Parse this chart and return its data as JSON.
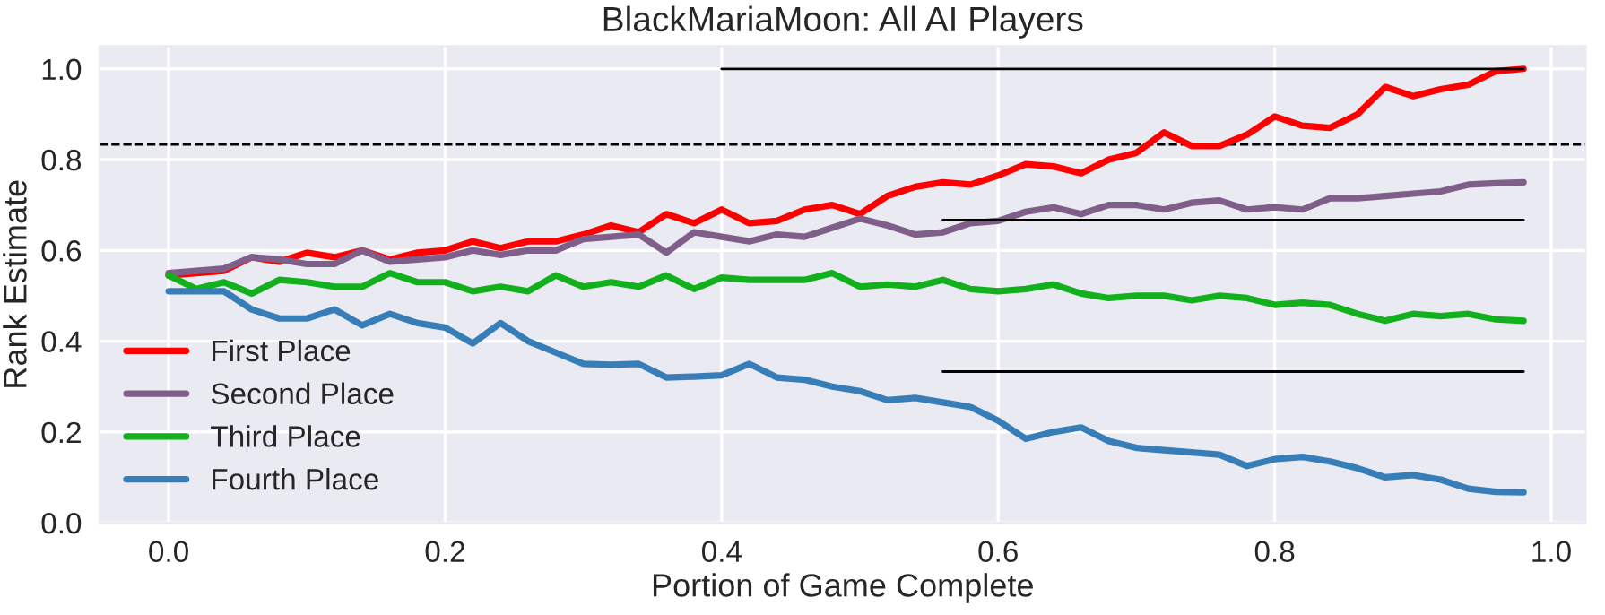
{
  "chart_data": {
    "type": "line",
    "title": "BlackMariaMoon: All AI Players",
    "xlabel": "Portion of Game Complete",
    "ylabel": "Rank Estimate",
    "x": [
      0.0,
      0.02,
      0.04,
      0.06,
      0.08,
      0.1,
      0.12,
      0.14,
      0.16,
      0.18,
      0.2,
      0.22,
      0.24,
      0.26,
      0.28,
      0.3,
      0.32,
      0.34,
      0.36,
      0.38,
      0.4,
      0.42,
      0.44,
      0.46,
      0.48,
      0.5,
      0.52,
      0.54,
      0.56,
      0.58,
      0.6,
      0.62,
      0.64,
      0.66,
      0.68,
      0.7,
      0.72,
      0.74,
      0.76,
      0.78,
      0.8,
      0.82,
      0.84,
      0.86,
      0.88,
      0.9,
      0.92,
      0.94,
      0.96,
      0.98
    ],
    "series": [
      {
        "name": "First Place",
        "color": "#ff0000",
        "values": [
          0.545,
          0.55,
          0.555,
          0.585,
          0.575,
          0.595,
          0.585,
          0.6,
          0.58,
          0.595,
          0.6,
          0.62,
          0.605,
          0.62,
          0.62,
          0.635,
          0.655,
          0.64,
          0.68,
          0.66,
          0.69,
          0.66,
          0.665,
          0.69,
          0.7,
          0.68,
          0.72,
          0.74,
          0.75,
          0.745,
          0.765,
          0.79,
          0.785,
          0.77,
          0.8,
          0.815,
          0.86,
          0.83,
          0.83,
          0.855,
          0.895,
          0.875,
          0.87,
          0.9,
          0.96,
          0.94,
          0.955,
          0.965,
          0.995,
          1.0
        ]
      },
      {
        "name": "Second Place",
        "color": "#7f5f8a",
        "values": [
          0.55,
          0.555,
          0.56,
          0.585,
          0.58,
          0.57,
          0.57,
          0.6,
          0.575,
          0.58,
          0.585,
          0.6,
          0.59,
          0.6,
          0.6,
          0.625,
          0.63,
          0.635,
          0.595,
          0.64,
          0.63,
          0.62,
          0.635,
          0.63,
          0.65,
          0.67,
          0.655,
          0.635,
          0.64,
          0.66,
          0.665,
          0.685,
          0.695,
          0.68,
          0.7,
          0.7,
          0.69,
          0.705,
          0.71,
          0.69,
          0.695,
          0.69,
          0.715,
          0.715,
          0.72,
          0.725,
          0.73,
          0.745,
          0.748,
          0.75
        ]
      },
      {
        "name": "Third Place",
        "color": "#12b01c",
        "values": [
          0.545,
          0.515,
          0.53,
          0.505,
          0.535,
          0.53,
          0.52,
          0.52,
          0.55,
          0.53,
          0.53,
          0.51,
          0.52,
          0.51,
          0.545,
          0.52,
          0.53,
          0.52,
          0.545,
          0.515,
          0.54,
          0.535,
          0.535,
          0.535,
          0.55,
          0.52,
          0.525,
          0.52,
          0.535,
          0.515,
          0.51,
          0.515,
          0.525,
          0.505,
          0.495,
          0.5,
          0.5,
          0.49,
          0.5,
          0.495,
          0.48,
          0.485,
          0.48,
          0.46,
          0.445,
          0.46,
          0.455,
          0.46,
          0.448,
          0.445
        ]
      },
      {
        "name": "Fourth Place",
        "color": "#377eb8",
        "values": [
          0.51,
          0.51,
          0.51,
          0.47,
          0.45,
          0.45,
          0.47,
          0.435,
          0.46,
          0.44,
          0.43,
          0.395,
          0.44,
          0.4,
          0.375,
          0.35,
          0.348,
          0.35,
          0.32,
          0.322,
          0.325,
          0.35,
          0.32,
          0.315,
          0.3,
          0.29,
          0.27,
          0.275,
          0.265,
          0.255,
          0.225,
          0.185,
          0.2,
          0.21,
          0.18,
          0.165,
          0.16,
          0.155,
          0.15,
          0.125,
          0.14,
          0.145,
          0.135,
          0.12,
          0.1,
          0.105,
          0.095,
          0.075,
          0.068,
          0.067
        ]
      },
      {
        "color": "#000000",
        "x": [
          0.4,
          0.98
        ],
        "values": [
          1.0,
          1.0
        ]
      },
      {
        "color": "#000000",
        "x": [
          0.56,
          0.98
        ],
        "values": [
          0.667,
          0.667
        ]
      },
      {
        "color": "#000000",
        "x": [
          0.56,
          0.98
        ],
        "values": [
          0.333,
          0.333
        ]
      }
    ],
    "ref_lines": [
      {
        "axis": "y",
        "value": 0.833,
        "color": "#000000",
        "line_style": "dashed"
      }
    ],
    "xlim": [
      -0.05,
      1.025
    ],
    "ylim": [
      0,
      1.05
    ],
    "xticks": [
      {
        "value": 0.0,
        "label": "0.0"
      },
      {
        "value": 0.2,
        "label": "0.2"
      },
      {
        "value": 0.4,
        "label": "0.4"
      },
      {
        "value": 0.6,
        "label": "0.6"
      },
      {
        "value": 0.8,
        "label": "0.8"
      },
      {
        "value": 1.0,
        "label": "1.0"
      }
    ],
    "yticks": [
      {
        "value": 0.0,
        "label": "0.0"
      },
      {
        "value": 0.2,
        "label": "0.2"
      },
      {
        "value": 0.4,
        "label": "0.4"
      },
      {
        "value": 0.6,
        "label": "0.6"
      },
      {
        "value": 0.8,
        "label": "0.8"
      },
      {
        "value": 1.0,
        "label": "1.0"
      }
    ],
    "grid": true,
    "legend": "bottom left",
    "marker": "none",
    "line_style": "solid"
  }
}
